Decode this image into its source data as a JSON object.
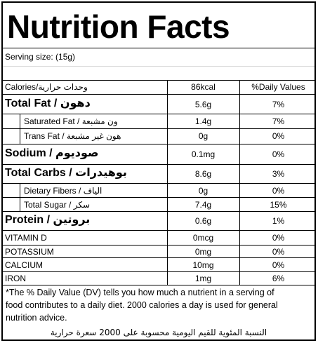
{
  "title": "Nutrition Facts",
  "serving": "Serving size:  (15g)",
  "header": {
    "label": "Calories/وحدات حرارية",
    "amount": "86kcal",
    "dv": "%Daily Values"
  },
  "rows": [
    {
      "label": "Total Fat / دهون",
      "amount": "5.6g",
      "dv": "7%"
    },
    {
      "label": "Saturated Fat / ون مشبعة",
      "amount": "1.4g",
      "dv": "7%"
    },
    {
      "label": "Trans Fat / هون غير مشبعة",
      "amount": "0g",
      "dv": "0%"
    },
    {
      "label": "Sodium / صوديوم",
      "amount": "0.1mg",
      "dv": "0%"
    },
    {
      "label": "Total Carbs / بوهيدرات",
      "amount": "8.6g",
      "dv": "3%"
    },
    {
      "label": "Dietary Fibers / الياف",
      "amount": "0g",
      "dv": "0%"
    },
    {
      "label": "Total Sugar / سكر",
      "amount": "7.4g",
      "dv": "15%"
    },
    {
      "label": "Protein / بروتين",
      "amount": "0.6g",
      "dv": "1%"
    },
    {
      "label": "VITAMIN D",
      "amount": "0mcg",
      "dv": "0%"
    },
    {
      "label": "POTASSIUM",
      "amount": "0mg",
      "dv": "0%"
    },
    {
      "label": "CALCIUM",
      "amount": "10mg",
      "dv": "0%"
    },
    {
      "label": "IRON",
      "amount": "1mg",
      "dv": "6%"
    }
  ],
  "footnote": {
    "line1": "*The % Daily Value (DV) tells you how much a nutrient in a serving of",
    "line2": "food contributes to a daily diet. 2000 calories a day is used for general",
    "line3": "nutrition advice.",
    "arabic": "النسبة المئوية للقيم اليومية محسوبة على 2000 سعرة حرارية"
  }
}
